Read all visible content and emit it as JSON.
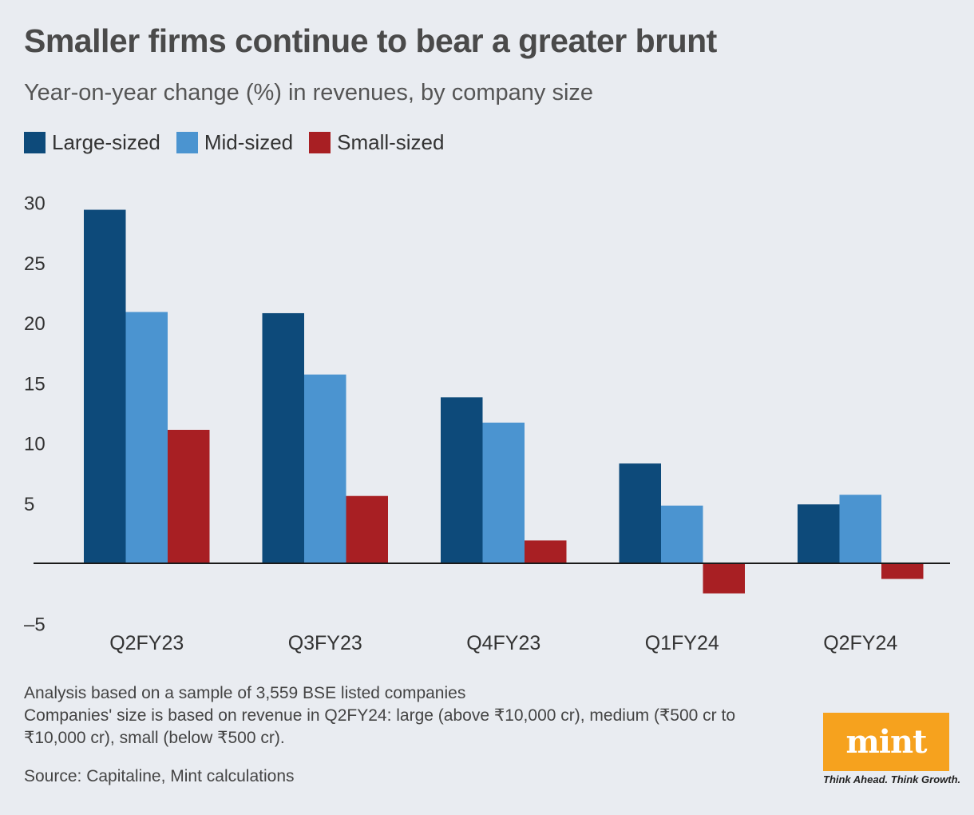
{
  "title": "Smaller firms continue to bear a greater brunt",
  "subtitle": "Year-on-year change (%) in revenues, by company size",
  "chart_data": {
    "type": "bar",
    "title": "Smaller firms continue to bear a greater brunt",
    "subtitle": "Year-on-year change (%) in revenues, by company size",
    "categories": [
      "Q2FY23",
      "Q3FY23",
      "Q4FY23",
      "Q1FY24",
      "Q2FY24"
    ],
    "series": [
      {
        "name": "Large-sized",
        "color": "#0d4a7a",
        "values": [
          29.4,
          20.8,
          13.8,
          8.3,
          4.9
        ]
      },
      {
        "name": "Mid-sized",
        "color": "#4b94d0",
        "values": [
          20.9,
          15.7,
          11.7,
          4.8,
          5.7
        ]
      },
      {
        "name": "Small-sized",
        "color": "#a81f23",
        "values": [
          11.1,
          5.6,
          1.9,
          -2.5,
          -1.3
        ]
      }
    ],
    "yticks": [
      30,
      25,
      20,
      15,
      10,
      5,
      -5
    ],
    "ytick_labels": [
      "30",
      "25",
      "20",
      "15",
      "10",
      "5",
      "–5"
    ],
    "ylim": [
      -5,
      30
    ],
    "xlabel": "",
    "ylabel": "",
    "grid": false,
    "legend_position": "top-left"
  },
  "notes": [
    "Analysis based on a sample of 3,559 BSE listed companies",
    "Companies' size is based on revenue in Q2FY24: large (above ₹10,000 cr), medium (₹500 cr to ₹10,000 cr), small (below ₹500 cr)."
  ],
  "source": "Source: Capitaline, Mint calculations",
  "brand": {
    "logo_text": "mint",
    "tagline": "Think Ahead. Think Growth.",
    "color": "#f6a21e"
  }
}
